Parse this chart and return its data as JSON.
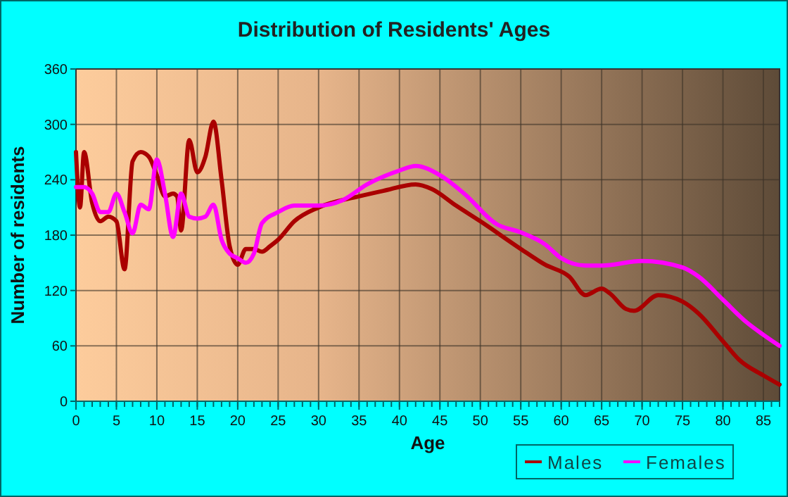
{
  "chart_data": {
    "type": "line",
    "title": "Distribution of Residents' Ages",
    "xlabel": "Age",
    "ylabel": "Number of residents",
    "xlim": [
      0,
      87
    ],
    "xticks": [
      0,
      5,
      10,
      15,
      20,
      25,
      30,
      35,
      40,
      45,
      50,
      55,
      60,
      65,
      70,
      75,
      80,
      85
    ],
    "ylim": [
      0,
      360
    ],
    "yticks": [
      0,
      60,
      120,
      180,
      240,
      300,
      360
    ],
    "grid": true,
    "legend": "bottom",
    "marker": "none",
    "line_style": "solid",
    "series": [
      {
        "name": "Males",
        "color": "#aa0000",
        "x": [
          0,
          0.5,
          1,
          2,
          3,
          4,
          5,
          6,
          7,
          8,
          9,
          10,
          11,
          12,
          12.5,
          13,
          14,
          15,
          16,
          17,
          18,
          19,
          20,
          21,
          22,
          23,
          24,
          25,
          27,
          30,
          35,
          38,
          42,
          44,
          47,
          50,
          55,
          58,
          61,
          63,
          65,
          66,
          68,
          69,
          72,
          75,
          77,
          80,
          82,
          85,
          87
        ],
        "values": [
          270,
          210,
          270,
          215,
          195,
          200,
          195,
          143,
          260,
          270,
          265,
          245,
          222,
          225,
          222,
          185,
          283,
          248,
          265,
          303,
          240,
          168,
          148,
          165,
          165,
          162,
          168,
          175,
          195,
          210,
          222,
          228,
          235,
          230,
          212,
          195,
          165,
          148,
          135,
          115,
          122,
          117,
          100,
          98,
          115,
          108,
          95,
          65,
          45,
          28,
          18
        ]
      },
      {
        "name": "Females",
        "color": "#ff00ff",
        "x": [
          0,
          1,
          2,
          3,
          4,
          5,
          6,
          7,
          8,
          9,
          10,
          11,
          12,
          13,
          14,
          15,
          16,
          17,
          18,
          19,
          20,
          21,
          22,
          23,
          25,
          27,
          30,
          33,
          36,
          40,
          42,
          45,
          48,
          52,
          55,
          58,
          60,
          63,
          65,
          70,
          75,
          77,
          80,
          83,
          85,
          87
        ],
        "values": [
          232,
          232,
          225,
          205,
          205,
          225,
          205,
          182,
          213,
          208,
          262,
          225,
          178,
          225,
          200,
          198,
          200,
          213,
          175,
          160,
          155,
          150,
          160,
          193,
          205,
          212,
          212,
          218,
          235,
          250,
          255,
          245,
          225,
          192,
          183,
          170,
          155,
          147,
          147,
          152,
          145,
          135,
          110,
          85,
          72,
          60
        ]
      }
    ]
  }
}
